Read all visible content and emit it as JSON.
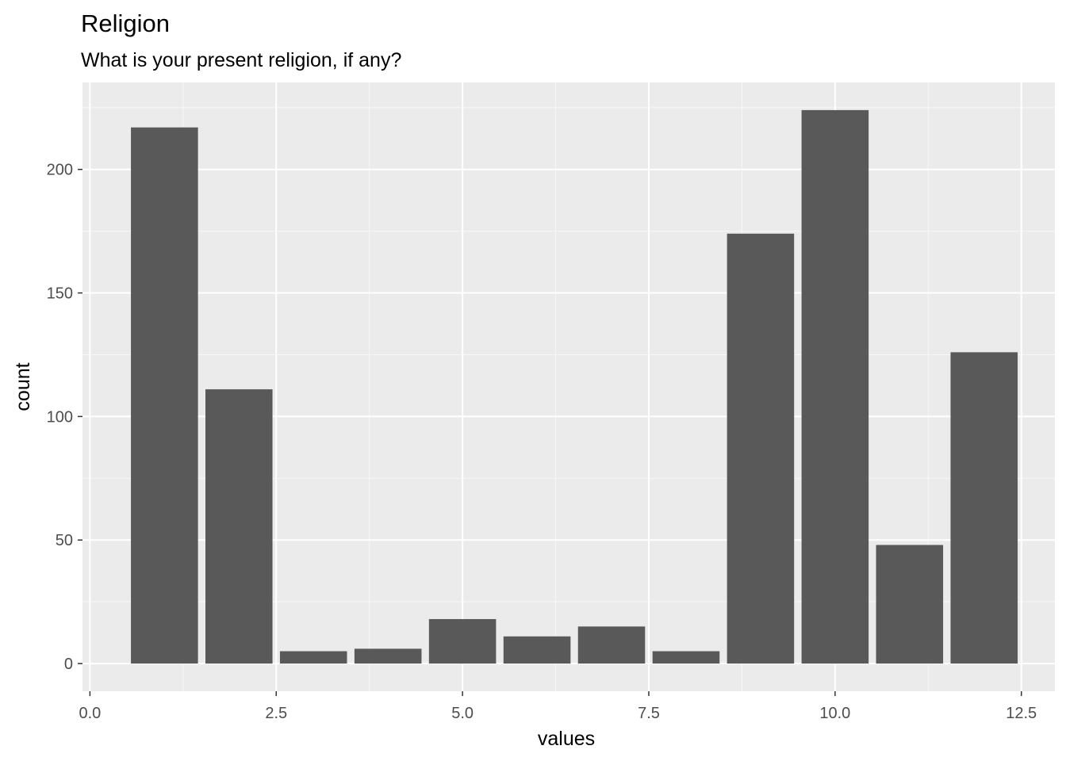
{
  "chart_data": {
    "type": "bar",
    "title": "Religion",
    "subtitle": "What is your present religion, if any?",
    "xlabel": "values",
    "ylabel": "count",
    "x": [
      1,
      2,
      3,
      4,
      5,
      6,
      7,
      8,
      9,
      10,
      11,
      12
    ],
    "values": [
      217,
      111,
      5,
      6,
      18,
      11,
      15,
      5,
      174,
      224,
      48,
      126
    ],
    "xlim": [
      -0.1,
      12.95
    ],
    "ylim": [
      -11.2,
      235.2
    ],
    "x_ticks": [
      0.0,
      2.5,
      5.0,
      7.5,
      10.0,
      12.5
    ],
    "x_tick_labels": [
      "0.0",
      "2.5",
      "5.0",
      "7.5",
      "10.0",
      "12.5"
    ],
    "y_ticks": [
      0,
      50,
      100,
      150,
      200
    ],
    "y_tick_labels": [
      "0",
      "50",
      "100",
      "150",
      "200"
    ],
    "grid": true,
    "colors": {
      "bar": "#595959",
      "panel": "#ebebeb",
      "grid_major": "#ffffff",
      "grid_minor": "#f7f7f7",
      "tick_text": "#4d4d4d",
      "text": "#000000"
    }
  }
}
